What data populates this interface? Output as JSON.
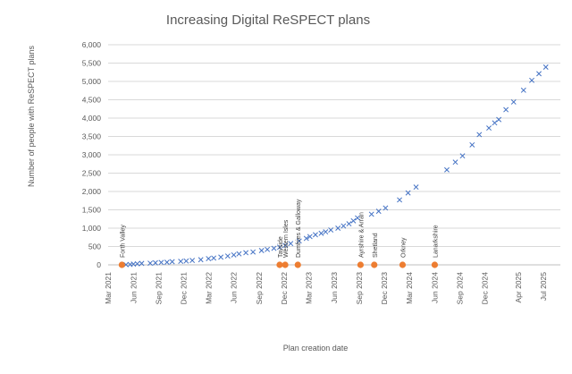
{
  "chart_data": {
    "type": "scatter",
    "title": "Increasing Digital ReSPECT plans",
    "xlabel": "Plan creation date",
    "ylabel": "Number of people with ReSPECT plans",
    "ylim": [
      0,
      6000
    ],
    "yticks": [
      0,
      500,
      1000,
      1500,
      2000,
      2500,
      3000,
      3500,
      4000,
      4500,
      5000,
      5500,
      6000
    ],
    "ytick_labels": [
      "0",
      "500",
      "1,000",
      "1,500",
      "2,000",
      "2,500",
      "3,000",
      "3,500",
      "4,000",
      "4,500",
      "5,000",
      "5,500",
      "6,000"
    ],
    "xlim": [
      "2021-03",
      "2025-09"
    ],
    "xticks": [
      "2021-03",
      "2021-06",
      "2021-09",
      "2021-12",
      "2022-03",
      "2022-06",
      "2022-09",
      "2022-12",
      "2023-03",
      "2023-06",
      "2023-09",
      "2023-12",
      "2024-03",
      "2024-06",
      "2024-09",
      "2024-12",
      "2025-04",
      "2025-07"
    ],
    "xtick_labels": [
      "Mar 2021",
      "Jun 2021",
      "Sep 2021",
      "Dec 2021",
      "Mar 2022",
      "Jun 2022",
      "Sep 2022",
      "Dec 2022",
      "Mar 2023",
      "Jun 2023",
      "Sep 2023",
      "Dec 2023",
      "Mar 2024",
      "Jun 2024",
      "Sep 2024",
      "Dec 2024",
      "Apr 2025",
      "Jul 2025"
    ],
    "gridlines": "horizontal",
    "series": [
      {
        "marker": "x",
        "color": "#4472C4",
        "points": [
          [
            "2021-05-05",
            5
          ],
          [
            "2021-05-20",
            10
          ],
          [
            "2021-06-01",
            20
          ],
          [
            "2021-06-15",
            30
          ],
          [
            "2021-07-01",
            40
          ],
          [
            "2021-08-01",
            45
          ],
          [
            "2021-08-20",
            55
          ],
          [
            "2021-09-10",
            65
          ],
          [
            "2021-10-01",
            70
          ],
          [
            "2021-10-20",
            85
          ],
          [
            "2021-11-20",
            95
          ],
          [
            "2021-12-10",
            105
          ],
          [
            "2022-01-01",
            120
          ],
          [
            "2022-02-01",
            140
          ],
          [
            "2022-03-01",
            170
          ],
          [
            "2022-03-20",
            185
          ],
          [
            "2022-04-15",
            210
          ],
          [
            "2022-05-10",
            240
          ],
          [
            "2022-06-01",
            270
          ],
          [
            "2022-06-20",
            300
          ],
          [
            "2022-07-15",
            330
          ],
          [
            "2022-08-10",
            350
          ],
          [
            "2022-09-10",
            390
          ],
          [
            "2022-10-01",
            420
          ],
          [
            "2022-10-25",
            450
          ],
          [
            "2022-11-15",
            480
          ],
          [
            "2022-12-05",
            530
          ],
          [
            "2022-12-25",
            580
          ],
          [
            "2023-01-25",
            650
          ],
          [
            "2023-02-20",
            720
          ],
          [
            "2023-03-05",
            770
          ],
          [
            "2023-03-25",
            820
          ],
          [
            "2023-04-15",
            860
          ],
          [
            "2023-05-01",
            900
          ],
          [
            "2023-05-20",
            950
          ],
          [
            "2023-06-15",
            1000
          ],
          [
            "2023-07-05",
            1060
          ],
          [
            "2023-07-25",
            1120
          ],
          [
            "2023-08-10",
            1200
          ],
          [
            "2023-08-25",
            1280
          ],
          [
            "2023-10-15",
            1380
          ],
          [
            "2023-11-10",
            1460
          ],
          [
            "2023-12-05",
            1550
          ],
          [
            "2024-01-25",
            1770
          ],
          [
            "2024-02-25",
            1960
          ],
          [
            "2024-03-25",
            2120
          ],
          [
            "2024-07-15",
            2590
          ],
          [
            "2024-08-15",
            2800
          ],
          [
            "2024-09-10",
            2970
          ],
          [
            "2024-10-15",
            3270
          ],
          [
            "2024-11-10",
            3550
          ],
          [
            "2024-12-15",
            3730
          ],
          [
            "2025-01-05",
            3870
          ],
          [
            "2025-01-20",
            3960
          ],
          [
            "2025-02-15",
            4230
          ],
          [
            "2025-03-15",
            4440
          ],
          [
            "2025-04-20",
            4760
          ],
          [
            "2025-05-20",
            5030
          ],
          [
            "2025-06-15",
            5210
          ],
          [
            "2025-07-10",
            5390
          ]
        ]
      },
      {
        "marker": "circle",
        "color": "#ED7D31",
        "points": [
          [
            "2021-04-20",
            0
          ],
          [
            "2022-11-15",
            0
          ],
          [
            "2022-12-05",
            0
          ],
          [
            "2023-01-20",
            0
          ],
          [
            "2023-09-05",
            0
          ],
          [
            "2023-10-25",
            0
          ],
          [
            "2024-02-05",
            0
          ],
          [
            "2024-06-01",
            0
          ]
        ],
        "labels": [
          "Forth Valley",
          "Tayside",
          "Western Isles",
          "Dumfries & Galloway",
          "Ayrshire & Arran",
          "Shetland",
          "Orkney",
          "Lanarkshire"
        ]
      }
    ]
  }
}
